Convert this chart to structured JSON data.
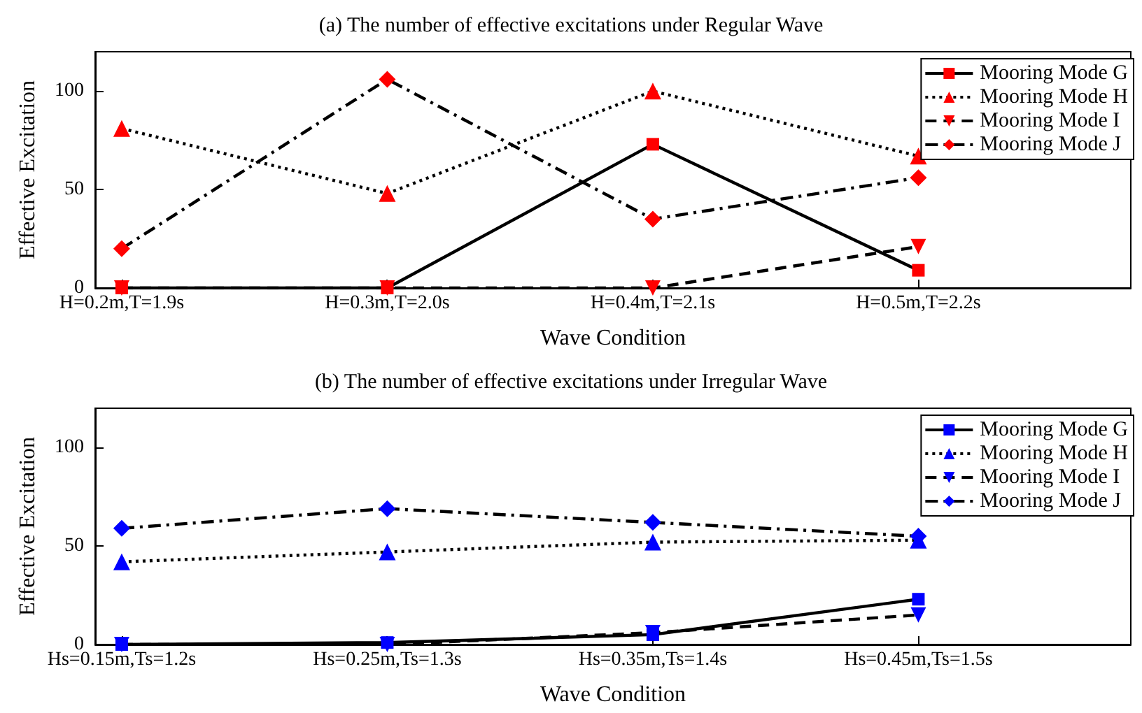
{
  "chart_data": [
    {
      "type": "line",
      "title": "(a) The number of effective excitations under Regular Wave",
      "xlabel": "Wave Condition",
      "ylabel": "Effective Excitation",
      "categories": [
        "H=0.2m,T=1.9s",
        "H=0.3m,T=2.0s",
        "H=0.4m,T=2.1s",
        "H=0.5m,T=2.2s"
      ],
      "series": [
        {
          "name": "Mooring Mode G",
          "color": "#ff0000",
          "marker": "square",
          "line_style": "solid",
          "values": [
            0,
            0,
            73,
            9
          ]
        },
        {
          "name": "Mooring Mode H",
          "color": "#ff0000",
          "marker": "triangle",
          "line_style": "dotted",
          "values": [
            81,
            48,
            100,
            67
          ]
        },
        {
          "name": "Mooring Mode I",
          "color": "#ff0000",
          "marker": "triangle-down",
          "line_style": "dashed",
          "values": [
            0,
            0,
            0,
            21
          ]
        },
        {
          "name": "Mooring Mode J",
          "color": "#ff0000",
          "marker": "diamond",
          "line_style": "dashdot",
          "values": [
            20,
            106,
            35,
            56
          ]
        }
      ],
      "ylim": [
        0,
        120
      ],
      "yticks": [
        0,
        50,
        100
      ],
      "grid": false,
      "legend": "top right"
    },
    {
      "type": "line",
      "title": "(b) The number of effective excitations under Irregular Wave",
      "xlabel": "Wave Condition",
      "ylabel": "Effective Excitation",
      "categories": [
        "Hs=0.15m,Ts=1.2s",
        "Hs=0.25m,Ts=1.3s",
        "Hs=0.35m,Ts=1.4s",
        "Hs=0.45m,Ts=1.5s"
      ],
      "series": [
        {
          "name": "Mooring Mode G",
          "color": "#0000ff",
          "marker": "square",
          "line_style": "solid",
          "values": [
            0,
            1,
            5,
            23
          ]
        },
        {
          "name": "Mooring Mode H",
          "color": "#0000ff",
          "marker": "triangle",
          "line_style": "dotted",
          "values": [
            42,
            47,
            52,
            53
          ]
        },
        {
          "name": "Mooring Mode I",
          "color": "#0000ff",
          "marker": "triangle-down",
          "line_style": "dashed",
          "values": [
            0,
            0,
            6,
            15
          ]
        },
        {
          "name": "Mooring Mode J",
          "color": "#0000ff",
          "marker": "diamond",
          "line_style": "dashdot",
          "values": [
            59,
            69,
            62,
            55
          ]
        }
      ],
      "ylim": [
        0,
        120
      ],
      "yticks": [
        0,
        50,
        100
      ],
      "grid": false,
      "legend": "top right"
    }
  ]
}
